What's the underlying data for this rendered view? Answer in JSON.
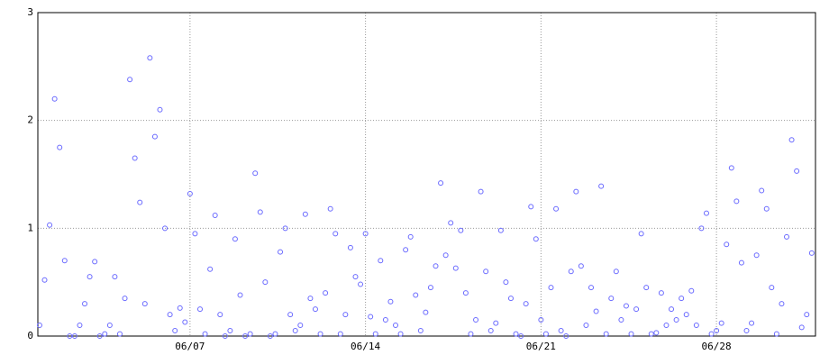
{
  "chart_data": {
    "type": "scatter",
    "color": "#6a6aff",
    "grid": true,
    "xlim": [
      0.93,
      31.95
    ],
    "ylim": [
      0,
      3
    ],
    "yticks": [
      0,
      1,
      2,
      3
    ],
    "xticks": [
      {
        "value": 7,
        "label": "06/07"
      },
      {
        "value": 14,
        "label": "06/14"
      },
      {
        "value": 21,
        "label": "06/21"
      },
      {
        "value": 28,
        "label": "06/28"
      }
    ],
    "x": [
      1,
      1.2,
      1.4,
      1.6,
      1.8,
      2,
      2.2,
      2.4,
      2.6,
      2.8,
      3,
      3.2,
      3.4,
      3.6,
      3.8,
      4,
      4.2,
      4.4,
      4.6,
      4.8,
      5,
      5.2,
      5.4,
      5.6,
      5.8,
      6,
      6.2,
      6.4,
      6.6,
      6.8,
      7,
      7.2,
      7.4,
      7.6,
      7.8,
      8,
      8.2,
      8.4,
      8.6,
      8.8,
      9,
      9.2,
      9.4,
      9.6,
      9.8,
      10,
      10.2,
      10.4,
      10.6,
      10.8,
      11,
      11.2,
      11.4,
      11.6,
      11.8,
      12,
      12.2,
      12.4,
      12.6,
      12.8,
      13,
      13.2,
      13.4,
      13.6,
      13.8,
      14,
      14.2,
      14.4,
      14.6,
      14.8,
      15,
      15.2,
      15.4,
      15.6,
      15.8,
      16,
      16.2,
      16.4,
      16.6,
      16.8,
      17,
      17.2,
      17.4,
      17.6,
      17.8,
      18,
      18.2,
      18.4,
      18.6,
      18.8,
      19,
      19.2,
      19.4,
      19.6,
      19.8,
      20,
      20.2,
      20.4,
      20.6,
      20.8,
      21,
      21.2,
      21.4,
      21.6,
      21.8,
      22,
      22.2,
      22.4,
      22.6,
      22.8,
      23,
      23.2,
      23.4,
      23.6,
      23.8,
      24,
      24.2,
      24.4,
      24.6,
      24.8,
      25,
      25.2,
      25.4,
      25.6,
      25.8,
      26,
      26.2,
      26.4,
      26.6,
      26.8,
      27,
      27.2,
      27.4,
      27.6,
      27.8,
      28,
      28.2,
      28.4,
      28.6,
      28.8,
      29,
      29.2,
      29.4,
      29.6,
      29.8,
      30,
      30.2,
      30.4,
      30.6,
      30.8,
      31,
      31.2,
      31.4,
      31.6,
      31.8
    ],
    "values": [
      0.1,
      0.52,
      1.03,
      2.2,
      1.75,
      0.7,
      0,
      0,
      0.1,
      0.3,
      0.55,
      0.69,
      0,
      0.02,
      0.1,
      0.55,
      0.02,
      0.35,
      2.38,
      1.65,
      1.24,
      0.3,
      2.58,
      1.85,
      2.1,
      1.0,
      0.2,
      0.05,
      0.26,
      0.13,
      1.32,
      0.95,
      0.25,
      0.02,
      0.62,
      1.12,
      0.2,
      0,
      0.05,
      0.9,
      0.38,
      0,
      0.02,
      1.51,
      1.15,
      0.5,
      0,
      0.02,
      0.78,
      1.0,
      0.2,
      0.05,
      0.1,
      1.13,
      0.35,
      0.25,
      0.02,
      0.4,
      1.18,
      0.95,
      0.02,
      0.2,
      0.82,
      0.55,
      0.48,
      0.95,
      0.18,
      0.02,
      0.7,
      0.15,
      0.32,
      0.1,
      0.02,
      0.8,
      0.92,
      0.38,
      0.05,
      0.22,
      0.45,
      0.65,
      1.42,
      0.75,
      1.05,
      0.63,
      0.98,
      0.4,
      0.02,
      0.15,
      1.34,
      0.6,
      0.05,
      0.12,
      0.98,
      0.5,
      0.35,
      0.02,
      0,
      0.3,
      1.2,
      0.9,
      0.15,
      0.02,
      0.45,
      1.18,
      0.05,
      0,
      0.6,
      1.34,
      0.65,
      0.1,
      0.45,
      0.23,
      1.39,
      0.02,
      0.35,
      0.6,
      0.15,
      0.28,
      0.02,
      0.25,
      0.95,
      0.45,
      0.02,
      0.03,
      0.4,
      0.1,
      0.25,
      0.15,
      0.35,
      0.2,
      0.42,
      0.1,
      1.0,
      1.14,
      0.02,
      0.05,
      0.12,
      0.85,
      1.56,
      1.25,
      0.68,
      0.05,
      0.12,
      0.75,
      1.35,
      1.18,
      0.45,
      0.02,
      0.3,
      0.92,
      1.82,
      1.53,
      0.08,
      0.2,
      0.77
    ]
  }
}
